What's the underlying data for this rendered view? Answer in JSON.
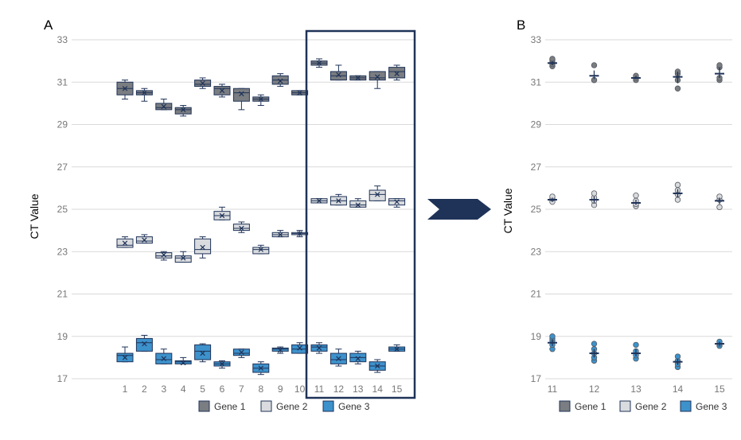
{
  "colors": {
    "gene1_fill": "#7a7d81",
    "gene2_fill": "#d9dbde",
    "gene3_fill": "#3d92cc",
    "outline": "#1f3358",
    "grid": "#d9d9d9",
    "axis_text": "#777777",
    "panel_label": "#1f3358",
    "highlight": "#1f3358",
    "arrow": "#1f3358"
  },
  "chart_data": [
    {
      "panel_label": "A",
      "type": "box",
      "ylabel": "CT Value",
      "ylim": [
        17,
        33
      ],
      "yticks": [
        17,
        19,
        21,
        23,
        25,
        27,
        29,
        31,
        33
      ],
      "categories": [
        "1",
        "2",
        "3",
        "4",
        "5",
        "6",
        "7",
        "8",
        "9",
        "10",
        "11",
        "12",
        "13",
        "14",
        "15"
      ],
      "highlight_categories": [
        "11",
        "15"
      ],
      "legend": [
        "Gene 1",
        "Gene 2",
        "Gene 3"
      ],
      "series": [
        {
          "name": "Gene 1",
          "boxes": [
            {
              "min": 30.2,
              "q1": 30.4,
              "median": 30.7,
              "q3": 31.0,
              "max": 31.1,
              "mean": 30.7
            },
            {
              "min": 30.1,
              "q1": 30.4,
              "median": 30.5,
              "q3": 30.6,
              "max": 30.7,
              "mean": 30.5
            },
            {
              "min": 29.7,
              "q1": 29.7,
              "median": 29.8,
              "q3": 30.0,
              "max": 30.2,
              "mean": 29.85
            },
            {
              "min": 29.4,
              "q1": 29.5,
              "median": 29.7,
              "q3": 29.8,
              "max": 29.9,
              "mean": 29.7
            },
            {
              "min": 30.7,
              "q1": 30.8,
              "median": 30.9,
              "q3": 31.1,
              "max": 31.2,
              "mean": 30.95
            },
            {
              "min": 30.3,
              "q1": 30.4,
              "median": 30.7,
              "q3": 30.8,
              "max": 30.9,
              "mean": 30.6
            },
            {
              "min": 29.7,
              "q1": 30.1,
              "median": 30.5,
              "q3": 30.7,
              "max": 30.7,
              "mean": 30.45
            },
            {
              "min": 29.9,
              "q1": 30.1,
              "median": 30.2,
              "q3": 30.3,
              "max": 30.4,
              "mean": 30.2
            },
            {
              "min": 30.8,
              "q1": 30.9,
              "median": 31.1,
              "q3": 31.3,
              "max": 31.4,
              "mean": 31.05
            },
            {
              "min": 30.4,
              "q1": 30.4,
              "median": 30.5,
              "q3": 30.6,
              "max": 30.6,
              "mean": 30.5
            },
            {
              "min": 31.7,
              "q1": 31.8,
              "median": 31.9,
              "q3": 32.0,
              "max": 32.1,
              "mean": 31.9
            },
            {
              "min": 31.1,
              "q1": 31.1,
              "median": 31.3,
              "q3": 31.5,
              "max": 31.8,
              "mean": 31.35
            },
            {
              "min": 31.1,
              "q1": 31.1,
              "median": 31.2,
              "q3": 31.3,
              "max": 31.3,
              "mean": 31.2
            },
            {
              "min": 30.7,
              "q1": 31.1,
              "median": 31.2,
              "q3": 31.5,
              "max": 31.5,
              "mean": 31.25
            },
            {
              "min": 31.1,
              "q1": 31.2,
              "median": 31.5,
              "q3": 31.7,
              "max": 31.8,
              "mean": 31.4
            }
          ]
        },
        {
          "name": "Gene 2",
          "boxes": [
            {
              "min": 23.2,
              "q1": 23.2,
              "median": 23.3,
              "q3": 23.6,
              "max": 23.7,
              "mean": 23.4
            },
            {
              "min": 23.4,
              "q1": 23.4,
              "median": 23.5,
              "q3": 23.7,
              "max": 23.8,
              "mean": 23.55
            },
            {
              "min": 22.6,
              "q1": 22.7,
              "median": 22.8,
              "q3": 22.95,
              "max": 23.0,
              "mean": 22.85
            },
            {
              "min": 22.5,
              "q1": 22.5,
              "median": 22.7,
              "q3": 22.8,
              "max": 23.0,
              "mean": 22.7
            },
            {
              "min": 22.7,
              "q1": 22.9,
              "median": 23.1,
              "q3": 23.6,
              "max": 23.7,
              "mean": 23.2
            },
            {
              "min": 24.5,
              "q1": 24.5,
              "median": 24.7,
              "q3": 24.9,
              "max": 25.1,
              "mean": 24.7
            },
            {
              "min": 23.9,
              "q1": 24.0,
              "median": 24.1,
              "q3": 24.3,
              "max": 24.4,
              "mean": 24.1
            },
            {
              "min": 22.9,
              "q1": 22.9,
              "median": 23.1,
              "q3": 23.2,
              "max": 23.3,
              "mean": 23.1
            },
            {
              "min": 23.7,
              "q1": 23.7,
              "median": 23.8,
              "q3": 23.9,
              "max": 24.0,
              "mean": 23.8
            },
            {
              "min": 23.7,
              "q1": 23.8,
              "median": 23.85,
              "q3": 23.9,
              "max": 24.0,
              "mean": 23.85
            },
            {
              "min": 25.3,
              "q1": 25.3,
              "median": 25.4,
              "q3": 25.5,
              "max": 25.5,
              "mean": 25.4
            },
            {
              "min": 25.2,
              "q1": 25.2,
              "median": 25.4,
              "q3": 25.6,
              "max": 25.7,
              "mean": 25.4
            },
            {
              "min": 25.1,
              "q1": 25.1,
              "median": 25.2,
              "q3": 25.4,
              "max": 25.5,
              "mean": 25.2
            },
            {
              "min": 25.4,
              "q1": 25.4,
              "median": 25.7,
              "q3": 25.9,
              "max": 26.1,
              "mean": 25.7
            },
            {
              "min": 25.1,
              "q1": 25.2,
              "median": 25.4,
              "q3": 25.5,
              "max": 25.5,
              "mean": 25.35
            }
          ]
        },
        {
          "name": "Gene 3",
          "boxes": [
            {
              "min": 17.8,
              "q1": 17.8,
              "median": 18.1,
              "q3": 18.2,
              "max": 18.5,
              "mean": 18.0
            },
            {
              "min": 18.3,
              "q1": 18.3,
              "median": 18.7,
              "q3": 18.9,
              "max": 19.05,
              "mean": 18.65
            },
            {
              "min": 17.7,
              "q1": 17.7,
              "median": 17.9,
              "q3": 18.2,
              "max": 18.4,
              "mean": 17.95
            },
            {
              "min": 17.7,
              "q1": 17.7,
              "median": 17.8,
              "q3": 17.85,
              "max": 18.0,
              "mean": 17.75
            },
            {
              "min": 17.8,
              "q1": 17.9,
              "median": 18.3,
              "q3": 18.6,
              "max": 18.65,
              "mean": 18.2
            },
            {
              "min": 17.5,
              "q1": 17.6,
              "median": 17.7,
              "q3": 17.8,
              "max": 17.85,
              "mean": 17.7
            },
            {
              "min": 18.0,
              "q1": 18.1,
              "median": 18.2,
              "q3": 18.4,
              "max": 18.4,
              "mean": 18.25
            },
            {
              "min": 17.2,
              "q1": 17.3,
              "median": 17.5,
              "q3": 17.7,
              "max": 17.8,
              "mean": 17.5
            },
            {
              "min": 18.2,
              "q1": 18.3,
              "median": 18.4,
              "q3": 18.45,
              "max": 18.5,
              "mean": 18.35
            },
            {
              "min": 18.2,
              "q1": 18.2,
              "median": 18.4,
              "q3": 18.6,
              "max": 18.7,
              "mean": 18.45
            },
            {
              "min": 18.2,
              "q1": 18.3,
              "median": 18.5,
              "q3": 18.6,
              "max": 18.7,
              "mean": 18.45
            },
            {
              "min": 17.6,
              "q1": 17.7,
              "median": 17.9,
              "q3": 18.2,
              "max": 18.4,
              "mean": 17.95
            },
            {
              "min": 17.7,
              "q1": 17.8,
              "median": 18.0,
              "q3": 18.2,
              "max": 18.3,
              "mean": 17.95
            },
            {
              "min": 17.3,
              "q1": 17.4,
              "median": 17.6,
              "q3": 17.8,
              "max": 17.9,
              "mean": 17.6
            },
            {
              "min": 18.3,
              "q1": 18.3,
              "median": 18.4,
              "q3": 18.5,
              "max": 18.6,
              "mean": 18.4
            }
          ]
        }
      ]
    },
    {
      "panel_label": "B",
      "type": "scatter",
      "ylabel": "CT Value",
      "ylim": [
        17,
        33
      ],
      "yticks": [
        17,
        19,
        21,
        23,
        25,
        27,
        29,
        31,
        33
      ],
      "categories": [
        "11",
        "12",
        "13",
        "14",
        "15"
      ],
      "legend": [
        "Gene 1",
        "Gene 2",
        "Gene 3"
      ],
      "series": [
        {
          "name": "Gene 1",
          "groups": [
            {
              "points": [
                31.75,
                31.85,
                31.95,
                32.05,
                32.1
              ],
              "mean": 31.9,
              "err_low": 31.8,
              "err_high": 32.0
            },
            {
              "points": [
                31.1,
                31.1,
                31.8
              ],
              "mean": 31.3,
              "err_low": 31.15,
              "err_high": 31.55
            },
            {
              "points": [
                31.1,
                31.2,
                31.3
              ],
              "mean": 31.2,
              "err_low": 31.15,
              "err_high": 31.3
            },
            {
              "points": [
                30.7,
                31.1,
                31.4,
                31.5
              ],
              "mean": 31.25,
              "err_low": 30.95,
              "err_high": 31.5
            },
            {
              "points": [
                31.1,
                31.2,
                31.7,
                31.8
              ],
              "mean": 31.4,
              "err_low": 31.2,
              "err_high": 31.7
            }
          ]
        },
        {
          "name": "Gene 2",
          "groups": [
            {
              "points": [
                25.35,
                25.5,
                25.6
              ],
              "mean": 25.45,
              "err_low": 25.35,
              "err_high": 25.55
            },
            {
              "points": [
                25.2,
                25.4,
                25.55,
                25.75
              ],
              "mean": 25.45,
              "err_low": 25.3,
              "err_high": 25.6
            },
            {
              "points": [
                25.15,
                25.25,
                25.4,
                25.65
              ],
              "mean": 25.3,
              "err_low": 25.2,
              "err_high": 25.45
            },
            {
              "points": [
                25.45,
                25.7,
                25.9,
                26.15
              ],
              "mean": 25.75,
              "err_low": 25.55,
              "err_high": 25.95
            },
            {
              "points": [
                25.1,
                25.45,
                25.6
              ],
              "mean": 25.4,
              "err_low": 25.25,
              "err_high": 25.55
            }
          ]
        },
        {
          "name": "Gene 3",
          "groups": [
            {
              "points": [
                18.4,
                18.6,
                18.8,
                18.9,
                19.0
              ],
              "mean": 18.7,
              "err_low": 18.55,
              "err_high": 18.85
            },
            {
              "points": [
                17.85,
                18.0,
                18.2,
                18.4,
                18.65
              ],
              "mean": 18.2,
              "err_low": 18.0,
              "err_high": 18.4
            },
            {
              "points": [
                17.95,
                18.1,
                18.3,
                18.6
              ],
              "mean": 18.2,
              "err_low": 18.05,
              "err_high": 18.4
            },
            {
              "points": [
                17.55,
                17.7,
                17.85,
                18.05
              ],
              "mean": 17.8,
              "err_low": 17.65,
              "err_high": 17.95
            },
            {
              "points": [
                18.55,
                18.65,
                18.75
              ],
              "mean": 18.65,
              "err_low": 18.55,
              "err_high": 18.75
            }
          ]
        }
      ]
    }
  ]
}
